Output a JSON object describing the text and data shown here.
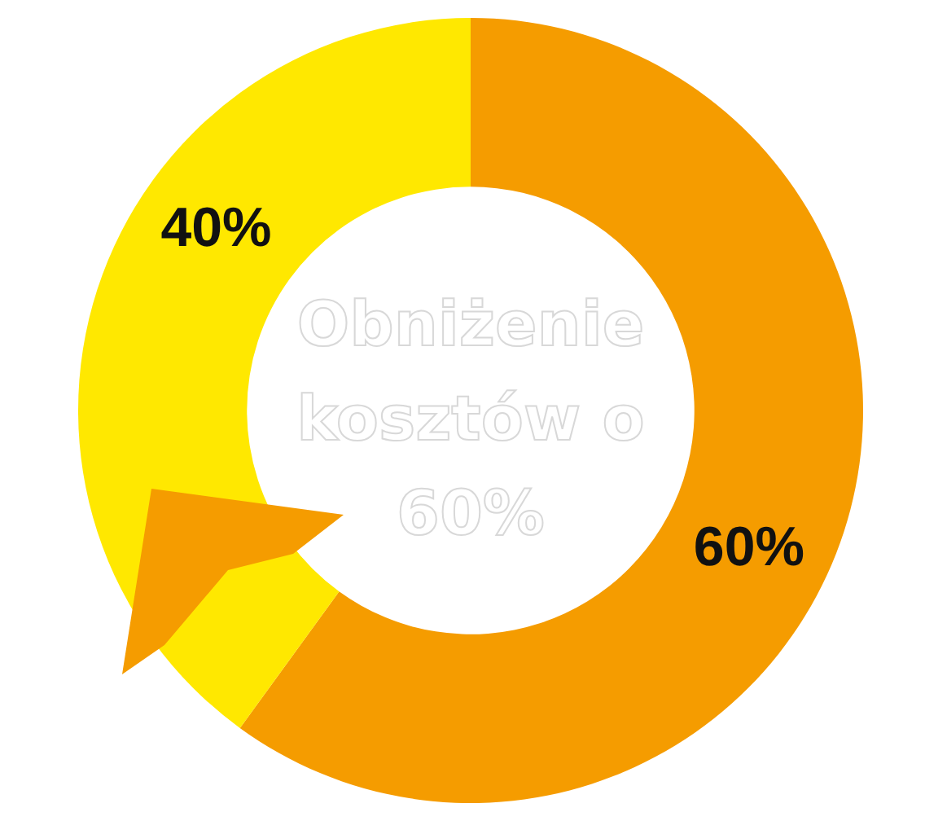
{
  "chart_data": {
    "type": "donut",
    "categories": [
      null,
      null
    ],
    "values": [
      60,
      40
    ],
    "colors": [
      "#f59c00",
      "#ffe800"
    ],
    "value_labels": [
      "60%",
      "40%"
    ],
    "legend": false,
    "annotations": [
      "Obniżenie kosztów o 60%"
    ]
  }
}
